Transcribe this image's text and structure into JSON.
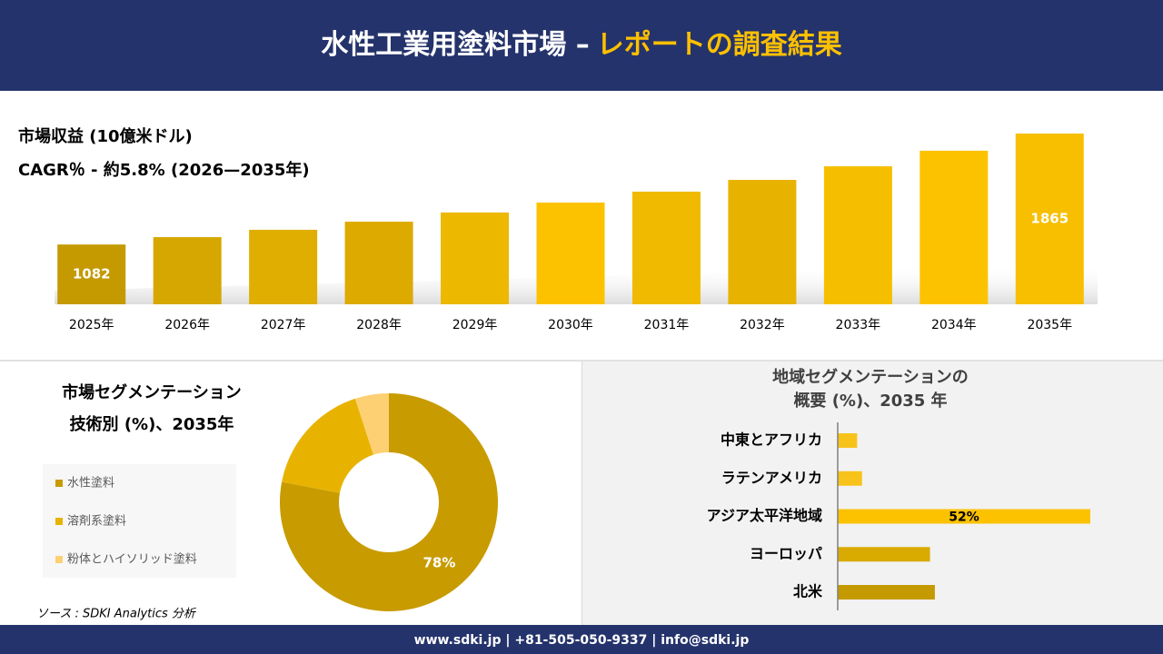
{
  "header": {
    "title": "水性工業用塗料市場 –",
    "title_highlight": "レポートの調査結果"
  },
  "chart_data": [
    {
      "type": "bar",
      "title": "市場収益 (10億米ドル)",
      "subtitle": "CAGR％ - 約5.8% (2026—2035年)",
      "categories": [
        "2025年",
        "2026年",
        "2027年",
        "2028年",
        "2029年",
        "2030年",
        "2031年",
        "2032年",
        "2033年",
        "2034年",
        "2035年"
      ],
      "values": [
        1082,
        1134,
        1186,
        1243,
        1308,
        1378,
        1455,
        1538,
        1634,
        1744,
        1865
      ],
      "value_labels": [
        "1082",
        null,
        null,
        null,
        null,
        null,
        null,
        null,
        null,
        null,
        "1865"
      ],
      "colors": [
        "#c49a00",
        "#d6a700",
        "#dfae00",
        "#ddaa00",
        "#ecb800",
        "#fcc200",
        "#f0ba00",
        "#e8b300",
        "#f5bf00",
        "#fcc200",
        "#f7bf00"
      ],
      "ylim": [
        660,
        2000
      ]
    },
    {
      "type": "donut",
      "title": [
        "市場セグメンテーション",
        "技術別 (%)、2035年"
      ],
      "categories": [
        "水性塗料",
        "溶剤系塗料",
        "粉体とハイソリッド塗料"
      ],
      "values": [
        78,
        17,
        5
      ],
      "value_labels": [
        "78%",
        null,
        null
      ],
      "colors": [
        "#c89b00",
        "#e8b300",
        "#fdd073"
      ]
    },
    {
      "type": "hbar",
      "title": [
        "地域セグメンテーションの",
        "概要 (%)、2035 年"
      ],
      "categories": [
        "中東とアフリカ",
        "ラテンアメリカ",
        "アジア太平洋地域",
        "ヨーロッパ",
        "北米"
      ],
      "values": [
        4,
        5,
        52,
        19,
        20
      ],
      "value_labels": [
        null,
        null,
        "52%",
        null,
        null
      ],
      "colors": [
        "#f7c31a",
        "#f7c31a",
        "#fcc200",
        "#d9aa00",
        "#c49a00"
      ],
      "xlim": [
        0,
        55
      ]
    }
  ],
  "source": "ソース : SDKI Analytics 分析",
  "footer": "www.sdki.jp | +81-505-050-9337 | info@sdki.jp"
}
